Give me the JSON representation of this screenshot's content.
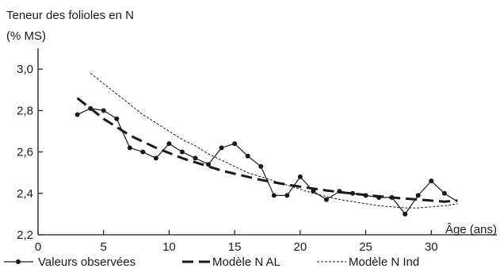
{
  "chart_data": {
    "type": "line",
    "ylabel_lines": [
      "Teneur des folioles en N",
      "(% MS)"
    ],
    "xlabel": "Âge (ans)",
    "xlim": [
      0,
      35
    ],
    "ylim": [
      2.2,
      3.1
    ],
    "x_ticks": [
      0,
      5,
      10,
      15,
      20,
      25,
      30
    ],
    "x_tick_labels": [
      "0",
      "5",
      "10",
      "15",
      "20",
      "25",
      "30"
    ],
    "y_ticks": [
      2.2,
      2.4,
      2.6,
      2.8,
      3.0
    ],
    "y_tick_labels": [
      "2,2",
      "2,4",
      "2,6",
      "2,8",
      "3,0"
    ],
    "grid": false,
    "legend_position": "bottom",
    "series": [
      {
        "name": "Valeurs observées",
        "style": "solid-markers",
        "color": "#1a1a1a",
        "x": [
          3,
          4,
          5,
          6,
          7,
          8,
          9,
          10,
          11,
          12,
          13,
          14,
          15,
          16,
          17,
          18,
          19,
          20,
          21,
          22,
          23,
          24,
          25,
          26,
          27,
          28,
          29,
          30,
          31,
          32
        ],
        "y": [
          2.78,
          2.81,
          2.8,
          2.76,
          2.62,
          2.6,
          2.57,
          2.64,
          2.6,
          2.57,
          2.54,
          2.62,
          2.64,
          2.58,
          2.53,
          2.39,
          2.39,
          2.48,
          2.41,
          2.37,
          2.41,
          2.4,
          2.39,
          2.38,
          2.38,
          2.3,
          2.39,
          2.46,
          2.4,
          2.36
        ]
      },
      {
        "name": "Modèle N AL",
        "style": "long-dash",
        "color": "#1a1a1a",
        "x": [
          3,
          4,
          5,
          6,
          7,
          8,
          9,
          10,
          11,
          12,
          13,
          14,
          15,
          16,
          17,
          18,
          19,
          20,
          21,
          22,
          23,
          24,
          25,
          26,
          27,
          28,
          29,
          30,
          31,
          32
        ],
        "y": [
          2.86,
          2.81,
          2.76,
          2.72,
          2.68,
          2.65,
          2.62,
          2.595,
          2.57,
          2.55,
          2.53,
          2.51,
          2.495,
          2.48,
          2.465,
          2.453,
          2.442,
          2.432,
          2.423,
          2.414,
          2.406,
          2.399,
          2.392,
          2.386,
          2.38,
          2.375,
          2.37,
          2.365,
          2.36,
          2.365
        ]
      },
      {
        "name": "Modèle N Ind",
        "style": "short-dash",
        "color": "#1a1a1a",
        "x": [
          4,
          5,
          6,
          7,
          8,
          9,
          10,
          11,
          12,
          13,
          14,
          15,
          16,
          17,
          18,
          19,
          20,
          21,
          22,
          23,
          24,
          25,
          26,
          27,
          28,
          29,
          30,
          31,
          32
        ],
        "y": [
          2.98,
          2.93,
          2.88,
          2.83,
          2.78,
          2.74,
          2.7,
          2.66,
          2.63,
          2.59,
          2.56,
          2.53,
          2.5,
          2.48,
          2.46,
          2.44,
          2.42,
          2.4,
          2.385,
          2.37,
          2.36,
          2.35,
          2.34,
          2.335,
          2.33,
          2.33,
          2.335,
          2.34,
          2.35
        ]
      }
    ]
  }
}
